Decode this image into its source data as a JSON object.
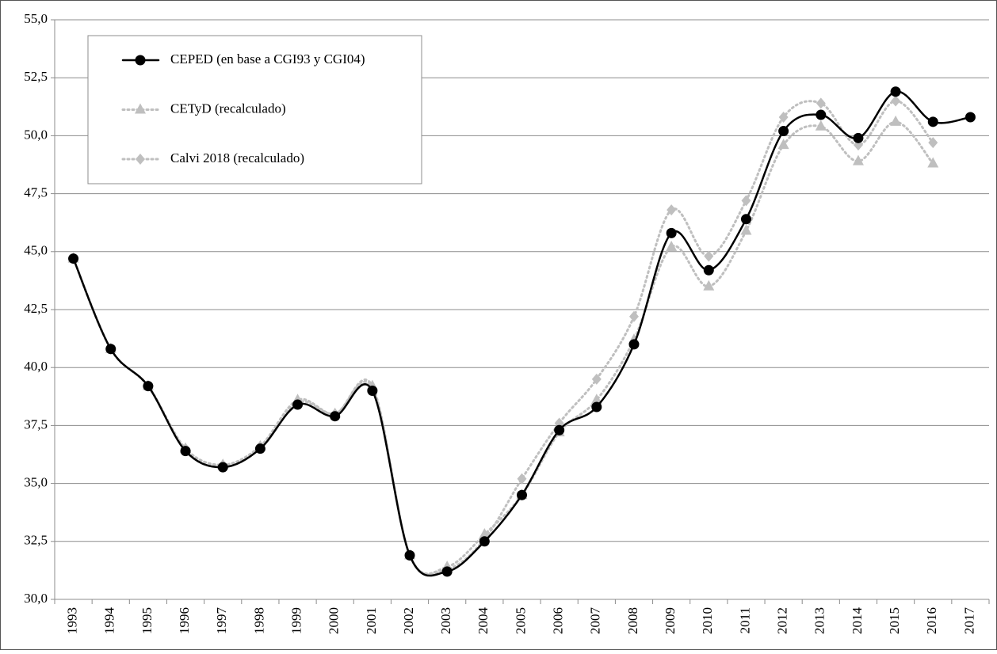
{
  "chart_data": {
    "type": "line",
    "categories": [
      "1993",
      "1994",
      "1995",
      "1996",
      "1997",
      "1998",
      "1999",
      "2000",
      "2001",
      "2002",
      "2003",
      "2004",
      "2005",
      "2006",
      "2007",
      "2008",
      "2009",
      "2010",
      "2011",
      "2012",
      "2013",
      "2014",
      "2015",
      "2016",
      "2017"
    ],
    "series": [
      {
        "name": "CEPED  (en base a CGI93 y CGI04)",
        "color": "#000000",
        "marker": "circle",
        "dash": "solid",
        "values": [
          44.7,
          40.8,
          39.2,
          36.4,
          35.7,
          36.5,
          38.4,
          37.9,
          39.0,
          31.9,
          31.2,
          32.5,
          34.5,
          37.3,
          38.3,
          41.0,
          45.8,
          44.2,
          46.4,
          50.2,
          50.9,
          49.9,
          51.9,
          50.6,
          50.8
        ]
      },
      {
        "name": "CETyD (recalculado)",
        "color": "#bfbfbf",
        "marker": "triangle",
        "dash": "dotted",
        "values": [
          44.7,
          40.8,
          39.2,
          36.5,
          35.8,
          36.6,
          38.6,
          38.0,
          39.2,
          31.9,
          31.4,
          32.8,
          34.5,
          37.2,
          38.6,
          41.2,
          45.2,
          43.5,
          45.9,
          49.6,
          50.4,
          48.9,
          50.6,
          48.8,
          null
        ]
      },
      {
        "name": "Calvi 2018 (recalculado)",
        "color": "#bfbfbf",
        "marker": "diamond",
        "dash": "dotted",
        "values": [
          44.7,
          40.8,
          39.2,
          36.5,
          35.8,
          36.6,
          38.5,
          38.0,
          39.1,
          31.9,
          31.3,
          32.6,
          35.2,
          37.6,
          39.5,
          42.2,
          46.8,
          44.8,
          47.2,
          50.8,
          51.4,
          49.6,
          51.5,
          49.7,
          null
        ]
      }
    ],
    "ylim": [
      30,
      55
    ],
    "yticks": [
      {
        "value": 30,
        "label": "30,0"
      },
      {
        "value": 32.5,
        "label": "32,5"
      },
      {
        "value": 35,
        "label": "35,0"
      },
      {
        "value": 37.5,
        "label": "37,5"
      },
      {
        "value": 40,
        "label": "40,0"
      },
      {
        "value": 42.5,
        "label": "42,5"
      },
      {
        "value": 45,
        "label": "45,0"
      },
      {
        "value": 47.5,
        "label": "47,5"
      },
      {
        "value": 50,
        "label": "50,0"
      },
      {
        "value": 52.5,
        "label": "52,5"
      },
      {
        "value": 55,
        "label": "55,0"
      }
    ],
    "grid": true,
    "smooth": true
  }
}
